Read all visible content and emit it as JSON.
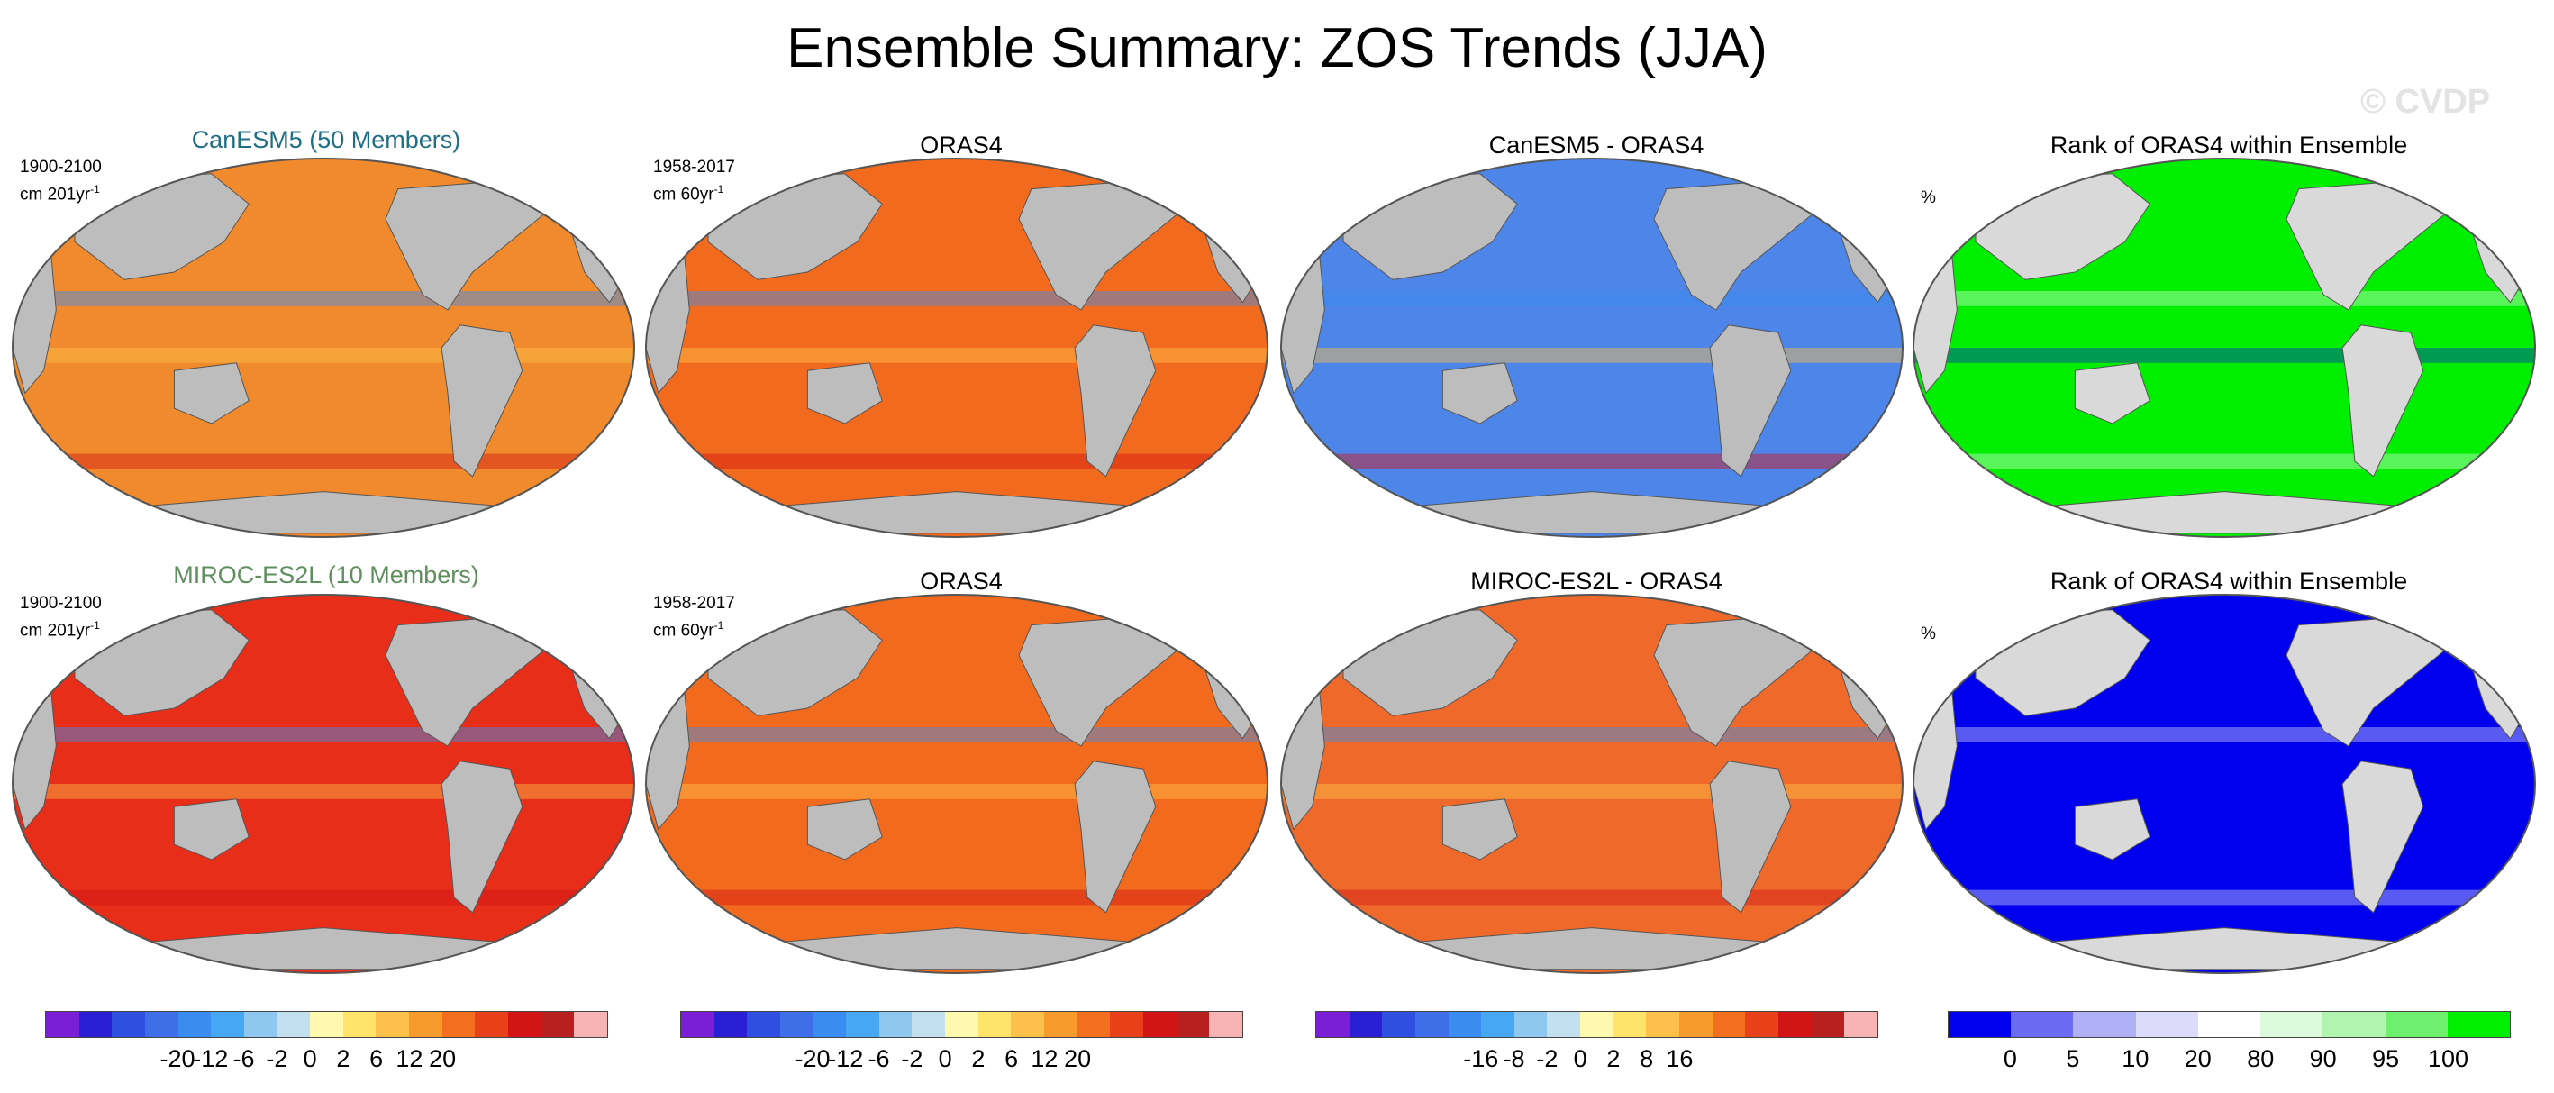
{
  "title": "Ensemble Summary: ZOS Trends (JJA)",
  "watermark": "© CVDP",
  "rows": [
    {
      "model_title": "CanESM5 (50 Members)",
      "model_color": "#1f6e86",
      "model_period": "1900-2100",
      "model_units": "cm 201yr",
      "model_units_exp": "-1",
      "obs_title": "ORAS4",
      "obs_period": "1958-2017",
      "obs_units": "cm 60yr",
      "obs_units_exp": "-1",
      "diff_title": "CanESM5 - ORAS4",
      "rank_title": "Rank of ORAS4 within Ensemble",
      "rank_units": "%",
      "colors": {
        "model": "#f08a2c",
        "obs": "#f26a1e",
        "diff": "#4d86e8",
        "rank": "#00ee00"
      }
    },
    {
      "model_title": "MIROC-ES2L (10 Members)",
      "model_color": "#5f8f5f",
      "model_period": "1900-2100",
      "model_units": "cm 201yr",
      "model_units_exp": "-1",
      "obs_title": "ORAS4",
      "obs_period": "1958-2017",
      "obs_units": "cm 60yr",
      "obs_units_exp": "-1",
      "diff_title": "MIROC-ES2L - ORAS4",
      "rank_title": "Rank of ORAS4 within Ensemble",
      "rank_units": "%",
      "colors": {
        "model": "#e82d18",
        "obs": "#f26a1e",
        "diff": "#ef6a2a",
        "rank": "#0000ee"
      }
    }
  ],
  "colorbars": [
    {
      "colors": [
        "#7a1fd6",
        "#2b1fd6",
        "#2e4fe0",
        "#3f6fe8",
        "#3a8cf0",
        "#46a8f5",
        "#8ec8f0",
        "#c2e0f0",
        "#fff9b0",
        "#ffe36a",
        "#fdc04a",
        "#f99a2c",
        "#f36e1e",
        "#e8411a",
        "#d21414",
        "#b82020",
        "#f8b4b4"
      ],
      "labels": [
        "-20",
        "-12",
        "-6",
        "-2",
        "0",
        "2",
        "6",
        "12",
        "20"
      ]
    },
    {
      "colors": [
        "#7a1fd6",
        "#2b1fd6",
        "#2e4fe0",
        "#3f6fe8",
        "#3a8cf0",
        "#46a8f5",
        "#8ec8f0",
        "#c2e0f0",
        "#fff9b0",
        "#ffe36a",
        "#fdc04a",
        "#f99a2c",
        "#f36e1e",
        "#e8411a",
        "#d21414",
        "#b82020",
        "#f8b4b4"
      ],
      "labels": [
        "-20",
        "-12",
        "-6",
        "-2",
        "0",
        "2",
        "6",
        "12",
        "20"
      ]
    },
    {
      "colors": [
        "#7a1fd6",
        "#2b1fd6",
        "#2e4fe0",
        "#3f6fe8",
        "#3a8cf0",
        "#46a8f5",
        "#8ec8f0",
        "#c2e0f0",
        "#fff9b0",
        "#ffe36a",
        "#fdc04a",
        "#f99a2c",
        "#f36e1e",
        "#e8411a",
        "#d21414",
        "#b82020",
        "#f8b4b4"
      ],
      "labels": [
        "-16",
        "-8",
        "-2",
        "0",
        "2",
        "8",
        "16"
      ]
    },
    {
      "colors": [
        "#0000ee",
        "#6a6af2",
        "#b0b0f6",
        "#dcdcfa",
        "#ffffff",
        "#dcfadc",
        "#b0f4b0",
        "#6ef06e",
        "#00ee00"
      ],
      "labels": [
        "0",
        "5",
        "10",
        "20",
        "80",
        "90",
        "95",
        "100"
      ]
    }
  ]
}
